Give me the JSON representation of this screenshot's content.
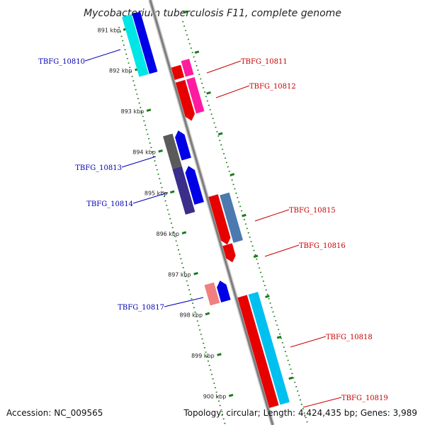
{
  "title": "Mycobacterium tuberculosis F11, complete genome",
  "footer": {
    "accession": "Accession: NC_009565",
    "stats": "Topology: circular; Length: 4,424,435 bp; Genes: 3,989"
  },
  "colors": {
    "backbone": "#8a8a8a",
    "tick": "#1a7a1a",
    "label_forward": "#c80000",
    "label_reverse": "#0000b4"
  },
  "ticks": [
    "891 kbp",
    "892 kbp",
    "893 kbp",
    "894 kbp",
    "895 kbp",
    "896 kbp",
    "897 kbp",
    "898 kbp",
    "899 kbp",
    "900 kbp"
  ],
  "genes": [
    {
      "label": "TBFG_10810",
      "strand": "reverse"
    },
    {
      "label": "TBFG_10811",
      "strand": "forward"
    },
    {
      "label": "TBFG_10812",
      "strand": "forward"
    },
    {
      "label": "TBFG_10813",
      "strand": "reverse"
    },
    {
      "label": "TBFG_10814",
      "strand": "reverse"
    },
    {
      "label": "TBFG_10815",
      "strand": "forward"
    },
    {
      "label": "TBFG_10816",
      "strand": "forward"
    },
    {
      "label": "TBFG_10817",
      "strand": "reverse"
    },
    {
      "label": "TBFG_10818",
      "strand": "forward"
    },
    {
      "label": "TBFG_10819",
      "strand": "forward"
    }
  ]
}
